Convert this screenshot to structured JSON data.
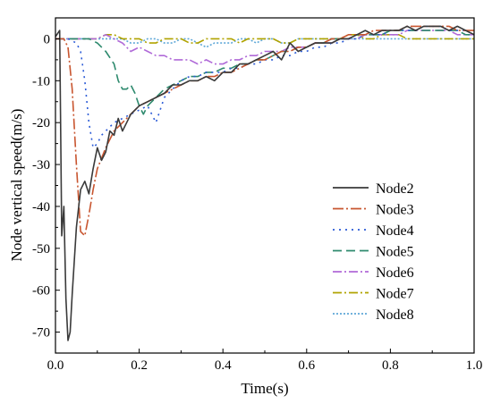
{
  "chart_data": {
    "type": "line",
    "xlabel": "Time(s)",
    "ylabel": "Node vertical speed(m/s)",
    "xlim": [
      0.0,
      1.0
    ],
    "ylim": [
      -75,
      5
    ],
    "x_ticks": [
      0.0,
      0.2,
      0.4,
      0.6,
      0.8,
      1.0
    ],
    "x_tick_labels": [
      "0.0",
      "0.2",
      "0.4",
      "0.6",
      "0.8",
      "1.0"
    ],
    "y_ticks": [
      0,
      -10,
      -20,
      -30,
      -40,
      -50,
      -60,
      -70
    ],
    "y_tick_labels": [
      "0",
      "-10",
      "-20",
      "-30",
      "-40",
      "-50",
      "-60",
      "-70"
    ],
    "grid": false,
    "legend_position": "bottom-right",
    "series": [
      {
        "name": "Node2",
        "color": "#3a3a3a",
        "dash": "solid",
        "x": [
          0.0,
          0.01,
          0.015,
          0.02,
          0.025,
          0.03,
          0.035,
          0.04,
          0.05,
          0.06,
          0.07,
          0.08,
          0.09,
          0.1,
          0.11,
          0.12,
          0.13,
          0.14,
          0.15,
          0.16,
          0.17,
          0.18,
          0.2,
          0.22,
          0.24,
          0.26,
          0.28,
          0.3,
          0.32,
          0.34,
          0.36,
          0.38,
          0.4,
          0.42,
          0.44,
          0.46,
          0.48,
          0.5,
          0.52,
          0.54,
          0.56,
          0.58,
          0.6,
          0.62,
          0.64,
          0.66,
          0.68,
          0.7,
          0.72,
          0.74,
          0.76,
          0.78,
          0.8,
          0.82,
          0.84,
          0.86,
          0.88,
          0.9,
          0.92,
          0.94,
          0.96,
          0.98,
          1.0
        ],
        "values": [
          0.5,
          2.0,
          -47,
          -40,
          -62,
          -72,
          -70,
          -61,
          -45,
          -36,
          -34,
          -37,
          -31,
          -26,
          -29,
          -27,
          -22,
          -23,
          -19,
          -22,
          -20,
          -18,
          -16,
          -15,
          -14,
          -13,
          -11,
          -11,
          -10,
          -10,
          -9,
          -10,
          -8,
          -8,
          -6,
          -6,
          -5,
          -4,
          -3,
          -5,
          -1,
          -3,
          -2,
          -1,
          -1,
          -1,
          0,
          0,
          1,
          2,
          1,
          2,
          2,
          2,
          3,
          2,
          3,
          3,
          3,
          2,
          3,
          2,
          1
        ]
      },
      {
        "name": "Node3",
        "color": "#c8552f",
        "dash": "12,3,2,3",
        "x": [
          0.0,
          0.02,
          0.03,
          0.04,
          0.05,
          0.06,
          0.07,
          0.08,
          0.09,
          0.1,
          0.12,
          0.14,
          0.16,
          0.18,
          0.2,
          0.22,
          0.24,
          0.26,
          0.28,
          0.3,
          0.32,
          0.34,
          0.36,
          0.38,
          0.4,
          0.42,
          0.44,
          0.46,
          0.48,
          0.5,
          0.52,
          0.54,
          0.56,
          0.58,
          0.6,
          0.62,
          0.64,
          0.66,
          0.68,
          0.7,
          0.72,
          0.74,
          0.76,
          0.78,
          0.8,
          0.82,
          0.84,
          0.86,
          0.88,
          0.9,
          0.92,
          0.94,
          0.96,
          0.98,
          1.0
        ],
        "values": [
          0,
          0,
          -2,
          -12,
          -30,
          -46,
          -47,
          -42,
          -36,
          -31,
          -26,
          -22,
          -20,
          -18,
          -16,
          -15,
          -14,
          -13,
          -12,
          -11,
          -10,
          -10,
          -9,
          -9,
          -8,
          -8,
          -7,
          -6,
          -5,
          -5,
          -4,
          -3,
          -3,
          -2,
          -2,
          -1,
          -1,
          0,
          0,
          1,
          1,
          1,
          2,
          2,
          2,
          2,
          3,
          3,
          3,
          3,
          3,
          3,
          2,
          2,
          2
        ]
      },
      {
        "name": "Node4",
        "color": "#2a5ad6",
        "dash": "2,5",
        "x": [
          0.0,
          0.03,
          0.05,
          0.06,
          0.07,
          0.08,
          0.09,
          0.1,
          0.11,
          0.12,
          0.14,
          0.16,
          0.18,
          0.2,
          0.22,
          0.24,
          0.26,
          0.28,
          0.3,
          0.32,
          0.34,
          0.36,
          0.38,
          0.4,
          0.42,
          0.44,
          0.46,
          0.48,
          0.5,
          0.52,
          0.54,
          0.56,
          0.58,
          0.6,
          0.62,
          0.64,
          0.66,
          0.68,
          0.7,
          0.72,
          0.74,
          0.76,
          0.78,
          0.8,
          0.82,
          0.84,
          0.86,
          0.88,
          0.9,
          0.92,
          0.94,
          0.96,
          0.98,
          1.0
        ],
        "values": [
          0,
          0,
          -1,
          -3,
          -10,
          -20,
          -26,
          -25,
          -23,
          -22,
          -20,
          -19,
          -18,
          -17,
          -16,
          -20,
          -14,
          -12,
          -10,
          -9,
          -9,
          -8,
          -8,
          -8,
          -7,
          -7,
          -6,
          -6,
          -5,
          -5,
          -4,
          -4,
          -3,
          -3,
          -2,
          -2,
          -1,
          -1,
          0,
          0,
          1,
          1,
          1,
          2,
          2,
          2,
          2,
          3,
          3,
          3,
          2,
          2,
          2,
          1
        ]
      },
      {
        "name": "Node5",
        "color": "#2e8a6e",
        "dash": "10,5",
        "x": [
          0.0,
          0.05,
          0.08,
          0.1,
          0.12,
          0.14,
          0.15,
          0.16,
          0.17,
          0.18,
          0.19,
          0.2,
          0.21,
          0.22,
          0.24,
          0.26,
          0.28,
          0.3,
          0.32,
          0.34,
          0.36,
          0.38,
          0.4,
          0.42,
          0.44,
          0.46,
          0.48,
          0.5,
          0.52,
          0.54,
          0.56,
          0.58,
          0.6,
          0.62,
          0.64,
          0.66,
          0.68,
          0.7,
          0.72,
          0.74,
          0.76,
          0.78,
          0.8,
          0.82,
          0.84,
          0.86,
          0.88,
          0.9,
          0.92,
          0.94,
          0.96,
          0.98,
          1.0
        ],
        "values": [
          0,
          0,
          0,
          -1,
          -3,
          -6,
          -10,
          -12,
          -12,
          -11,
          -13,
          -16,
          -18,
          -16,
          -14,
          -12,
          -11,
          -10,
          -9,
          -9,
          -8,
          -8,
          -7,
          -7,
          -6,
          -6,
          -5,
          -5,
          -4,
          -3,
          -3,
          -2,
          -2,
          -1,
          -1,
          0,
          0,
          0,
          1,
          1,
          1,
          1,
          2,
          2,
          2,
          2,
          2,
          2,
          2,
          2,
          2,
          1,
          1
        ]
      },
      {
        "name": "Node6",
        "color": "#b06ad8",
        "dash": "10,3,2,3",
        "x": [
          0.0,
          0.05,
          0.1,
          0.12,
          0.14,
          0.16,
          0.18,
          0.2,
          0.22,
          0.24,
          0.26,
          0.28,
          0.3,
          0.32,
          0.34,
          0.36,
          0.38,
          0.4,
          0.42,
          0.44,
          0.46,
          0.48,
          0.5,
          0.52,
          0.54,
          0.56,
          0.58,
          0.6,
          0.62,
          0.64,
          0.66,
          0.68,
          0.7,
          0.72,
          0.74,
          0.76,
          0.78,
          0.8,
          0.82,
          0.84,
          0.86,
          0.88,
          0.9,
          0.92,
          0.94,
          0.96,
          0.98,
          1.0
        ],
        "values": [
          0,
          0,
          0,
          1,
          0,
          -1,
          -3,
          -2,
          -3,
          -4,
          -4,
          -5,
          -5,
          -5,
          -6,
          -5,
          -6,
          -6,
          -5,
          -5,
          -4,
          -4,
          -3,
          -3,
          -3,
          -2,
          -2,
          -2,
          -1,
          -1,
          -1,
          0,
          0,
          0,
          1,
          1,
          1,
          1,
          1,
          2,
          2,
          2,
          2,
          2,
          2,
          1,
          1,
          1
        ]
      },
      {
        "name": "Node7",
        "color": "#b0a300",
        "dash": "10,3,2,3",
        "x": [
          0.0,
          0.05,
          0.1,
          0.12,
          0.14,
          0.16,
          0.18,
          0.2,
          0.22,
          0.24,
          0.26,
          0.28,
          0.3,
          0.32,
          0.34,
          0.36,
          0.38,
          0.4,
          0.42,
          0.44,
          0.46,
          0.48,
          0.5,
          0.52,
          0.54,
          0.56,
          0.58,
          0.6,
          0.62,
          0.64,
          0.66,
          0.68,
          0.7,
          0.72,
          0.74,
          0.76,
          0.78,
          0.8,
          0.82,
          0.84,
          0.86,
          0.88,
          0.9,
          0.92,
          0.94,
          0.96,
          0.98,
          1.0
        ],
        "values": [
          0,
          0,
          0,
          1,
          1,
          0,
          0,
          0,
          -1,
          -1,
          0,
          0,
          0,
          -1,
          -1,
          0,
          0,
          0,
          0,
          -1,
          0,
          0,
          0,
          0,
          -1,
          -1,
          0,
          0,
          0,
          0,
          0,
          0,
          1,
          1,
          0,
          0,
          1,
          1,
          1,
          0,
          0,
          0,
          0,
          0,
          0,
          0,
          0,
          0
        ]
      },
      {
        "name": "Node8",
        "color": "#5fa8d8",
        "dash": "2,2",
        "x": [
          0.0,
          0.05,
          0.1,
          0.12,
          0.14,
          0.16,
          0.18,
          0.2,
          0.22,
          0.24,
          0.26,
          0.28,
          0.3,
          0.32,
          0.34,
          0.36,
          0.38,
          0.4,
          0.42,
          0.44,
          0.46,
          0.48,
          0.5,
          0.52,
          0.54,
          0.56,
          0.58,
          0.6,
          0.62,
          0.64,
          0.66,
          0.68,
          0.7,
          0.72,
          0.74,
          0.76,
          0.78,
          0.8,
          0.82,
          0.84,
          0.86,
          0.88,
          0.9,
          0.92,
          0.94,
          0.96,
          0.98,
          1.0
        ],
        "values": [
          0,
          0,
          0,
          0,
          0,
          0,
          -1,
          -1,
          0,
          0,
          -1,
          -1,
          0,
          0,
          -1,
          -2,
          -1,
          -1,
          -1,
          0,
          0,
          -1,
          0,
          0,
          -1,
          -1,
          0,
          0,
          0,
          0,
          0,
          0,
          0,
          0,
          0,
          0,
          0,
          0,
          0,
          0,
          0,
          0,
          0,
          0,
          0,
          0,
          0,
          0
        ]
      }
    ]
  }
}
